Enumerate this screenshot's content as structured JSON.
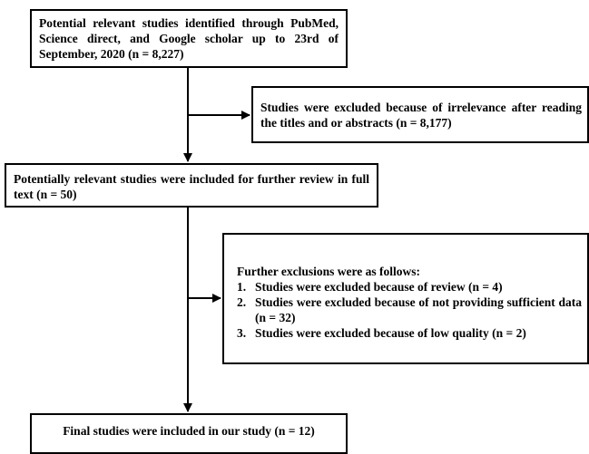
{
  "flowchart": {
    "identified": "Potential relevant studies identified through PubMed, Science direct, and Google scholar up to 23rd of September, 2020 (n = 8,227)",
    "excluded_titles": "Studies were excluded because of irrelevance after reading the titles and or abstracts (n = 8,177)",
    "full_text": "Potentially relevant studies were included for further review in full text  (n = 50)",
    "further_exclusions": {
      "heading": "Further exclusions were as follows:",
      "items": [
        {
          "num": "1.",
          "text": "Studies were excluded because of review (n = 4)"
        },
        {
          "num": "2.",
          "text": "Studies were excluded because of not providing sufficient data (n = 32)"
        },
        {
          "num": "3.",
          "text": "Studies were excluded because of low quality (n = 2)"
        }
      ]
    },
    "final": "Final studies were included in our study (n = 12)"
  }
}
